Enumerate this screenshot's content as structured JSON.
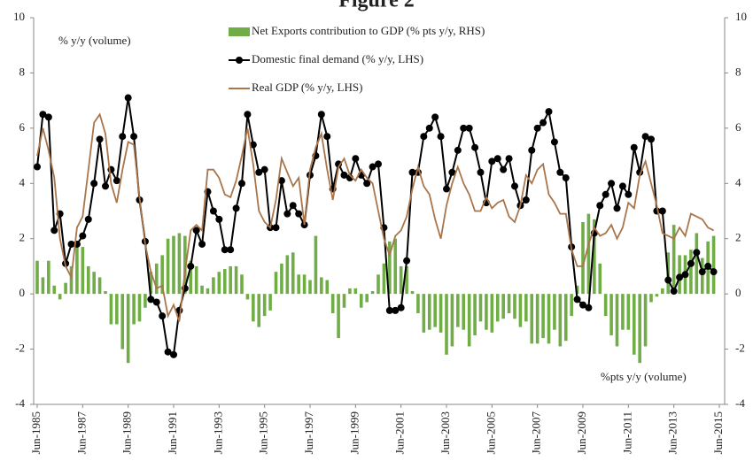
{
  "chart_data": {
    "type": "bar_line",
    "title": "Figure 2",
    "y_annotation": "% y/y (volume)",
    "y2_annotation": "%pts y/y (volume)",
    "categories": [
      "Jun-1985",
      null,
      null,
      null,
      null,
      null,
      null,
      null,
      "Jun-1987",
      null,
      null,
      null,
      null,
      null,
      null,
      null,
      "Jun-1989",
      null,
      null,
      null,
      null,
      null,
      null,
      null,
      "Jun-1991",
      null,
      null,
      null,
      null,
      null,
      null,
      null,
      "Jun-1993",
      null,
      null,
      null,
      null,
      null,
      null,
      null,
      "Jun-1995",
      null,
      null,
      null,
      null,
      null,
      null,
      null,
      "Jun-1997",
      null,
      null,
      null,
      null,
      null,
      null,
      null,
      "Jun-1999",
      null,
      null,
      null,
      null,
      null,
      null,
      null,
      "Jun-2001",
      null,
      null,
      null,
      null,
      null,
      null,
      null,
      "Jun-2003",
      null,
      null,
      null,
      null,
      null,
      null,
      null,
      "Jun-2005",
      null,
      null,
      null,
      null,
      null,
      null,
      null,
      "Jun-2007",
      null,
      null,
      null,
      null,
      null,
      null,
      null,
      "Jun-2009",
      null,
      null,
      null,
      null,
      null,
      null,
      null,
      "Jun-2011",
      null,
      null,
      null,
      null,
      null,
      null,
      null,
      "Jun-2013",
      null,
      null,
      null,
      null,
      null,
      null,
      null,
      "Jun-2015"
    ],
    "ylim": [
      -4,
      10
    ],
    "yticks": [
      -4,
      -2,
      0,
      2,
      4,
      6,
      8,
      10
    ],
    "y2lim": [
      -4,
      10
    ],
    "y2ticks": [
      -4,
      -2,
      0,
      2,
      4,
      6,
      8,
      10
    ],
    "series": [
      {
        "name": "Net Exports contribution to GDP (% pts y/y, RHS)",
        "type": "bar",
        "axis": "y2",
        "color": "#70ad47",
        "values": [
          1.2,
          0.6,
          1.2,
          0.3,
          -0.2,
          0.4,
          1.0,
          1.8,
          1.7,
          1.0,
          0.8,
          0.6,
          0.1,
          -1.1,
          -1.1,
          -2.0,
          -2.5,
          -1.1,
          -1.0,
          -0.5,
          0.8,
          1.1,
          1.4,
          2.0,
          2.1,
          2.2,
          2.1,
          1.2,
          1.0,
          0.3,
          0.2,
          0.6,
          0.8,
          0.9,
          1.0,
          1.0,
          0.7,
          -0.2,
          -1.0,
          -1.2,
          -0.8,
          -0.6,
          0.8,
          1.1,
          1.4,
          1.5,
          0.7,
          0.7,
          0.5,
          2.1,
          0.6,
          0.5,
          -0.7,
          -1.6,
          -0.5,
          0.2,
          0.2,
          -0.5,
          -0.3,
          0.1,
          0.7,
          1.1,
          1.9,
          2.0,
          1.0,
          1.0,
          0.1,
          -0.7,
          -1.4,
          -1.3,
          -1.2,
          -1.4,
          -2.2,
          -1.9,
          -1.2,
          -1.3,
          -1.9,
          -1.5,
          -1.0,
          -1.3,
          -1.4,
          -1.0,
          -0.9,
          -0.7,
          -0.9,
          -1.2,
          -1.0,
          -1.8,
          -1.8,
          -1.6,
          -1.8,
          -1.3,
          -1.9,
          -1.7,
          -0.8,
          0.3,
          2.6,
          2.9,
          2.7,
          1.1,
          -0.8,
          -1.5,
          -1.9,
          -1.3,
          -1.3,
          -2.2,
          -2.5,
          -1.9,
          -0.3,
          -0.1,
          0.2,
          1.5,
          2.5,
          1.4,
          1.4,
          1.6,
          2.2,
          1.3,
          1.9,
          2.1,
          null
        ]
      },
      {
        "name": "Domestic final demand (% y/y, LHS)",
        "type": "line",
        "markers": true,
        "color": "#000000",
        "values": [
          4.6,
          6.5,
          6.4,
          2.3,
          2.9,
          1.1,
          1.8,
          1.8,
          2.1,
          2.7,
          4.0,
          5.6,
          3.9,
          4.5,
          4.1,
          5.7,
          7.1,
          5.7,
          3.4,
          1.9,
          -0.2,
          -0.3,
          -0.8,
          -2.1,
          -2.2,
          -0.6,
          0.2,
          1.0,
          2.3,
          1.8,
          3.7,
          3.0,
          2.7,
          1.6,
          1.6,
          3.1,
          4.0,
          6.5,
          5.4,
          4.4,
          4.5,
          2.4,
          2.4,
          4.1,
          2.9,
          3.2,
          2.9,
          2.5,
          4.3,
          5.0,
          6.5,
          5.7,
          3.8,
          4.7,
          4.3,
          4.2,
          4.9,
          4.3,
          4.0,
          4.6,
          4.7,
          2.4,
          -0.6,
          -0.6,
          -0.5,
          1.2,
          4.4,
          4.4,
          5.7,
          6.0,
          6.4,
          5.7,
          3.8,
          4.4,
          5.2,
          6.0,
          6.0,
          5.3,
          4.4,
          3.3,
          4.8,
          4.9,
          4.5,
          4.9,
          3.9,
          3.2,
          3.4,
          5.2,
          6.0,
          6.2,
          6.6,
          5.5,
          4.4,
          4.2,
          1.7,
          -0.2,
          -0.4,
          -0.5,
          2.2,
          3.2,
          3.6,
          4.0,
          3.1,
          3.9,
          3.6,
          5.3,
          4.4,
          5.7,
          5.6,
          3.0,
          3.0,
          0.5,
          0.1,
          0.6,
          0.7,
          1.1,
          1.5,
          0.8,
          1.0,
          0.8,
          null
        ]
      },
      {
        "name": "Real GDP (% y/y, LHS)",
        "type": "line",
        "markers": false,
        "color": "#a9754a",
        "values": [
          5.0,
          6.0,
          5.2,
          4.2,
          2.0,
          1.0,
          0.6,
          2.4,
          2.8,
          4.5,
          6.2,
          6.5,
          5.8,
          4.0,
          3.3,
          4.5,
          5.5,
          5.4,
          3.5,
          1.8,
          0.8,
          0.2,
          0.3,
          -0.8,
          -0.4,
          -1.0,
          0.8,
          2.3,
          2.5,
          2.3,
          4.5,
          4.5,
          4.2,
          3.6,
          3.5,
          4.1,
          5.0,
          6.0,
          4.7,
          3.0,
          2.6,
          2.4,
          3.4,
          4.9,
          4.4,
          3.9,
          4.2,
          2.5,
          4.5,
          5.3,
          5.8,
          4.5,
          3.4,
          4.6,
          4.9,
          4.3,
          4.1,
          4.5,
          4.2,
          4.0,
          3.0,
          2.0,
          1.4,
          2.1,
          2.3,
          2.8,
          3.8,
          4.6,
          3.9,
          3.6,
          2.7,
          2.0,
          3.2,
          4.0,
          4.6,
          4.0,
          3.6,
          3.0,
          3.0,
          3.5,
          3.1,
          3.3,
          3.4,
          2.8,
          2.6,
          3.2,
          4.3,
          4.0,
          4.5,
          4.7,
          3.6,
          3.3,
          2.9,
          2.9,
          1.6,
          1.0,
          1.0,
          1.8,
          2.4,
          2.1,
          2.2,
          2.5,
          2.0,
          2.4,
          3.3,
          3.1,
          4.3,
          4.8,
          4.0,
          3.2,
          2.2,
          2.1,
          2.0,
          2.4,
          2.1,
          2.9,
          2.8,
          2.7,
          2.4,
          2.3,
          null
        ]
      }
    ]
  }
}
